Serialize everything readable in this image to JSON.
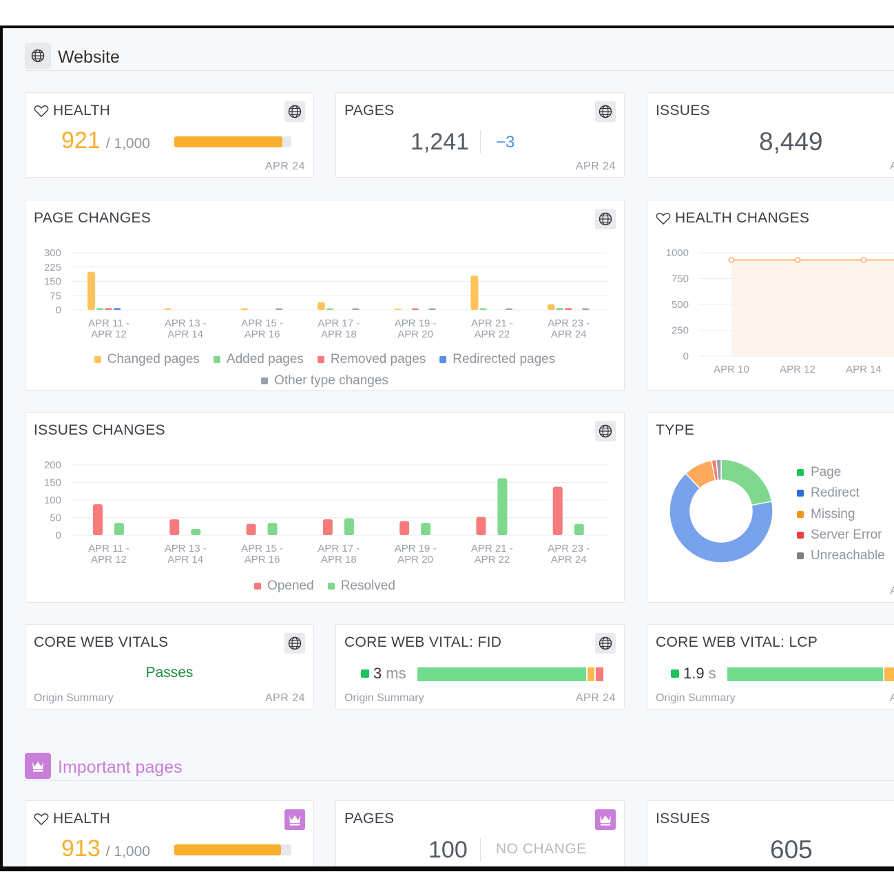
{
  "section_website": {
    "title": "Website"
  },
  "health": {
    "title": "HEALTH",
    "value": "921",
    "max": "/ 1,000",
    "fraction": 0.921,
    "date": "APR 24"
  },
  "pages": {
    "title": "PAGES",
    "value": "1,241",
    "change": "−3",
    "date": "APR 24"
  },
  "issues": {
    "title": "ISSUES",
    "value": "8,449",
    "date_partial": "A"
  },
  "page_changes": {
    "title": "PAGE CHANGES"
  },
  "health_changes": {
    "title": "HEALTH CHANGES"
  },
  "issues_changes": {
    "title": "ISSUES CHANGES"
  },
  "type": {
    "title": "TYPE",
    "date_partial": "A"
  },
  "cwv": {
    "title": "CORE WEB VITALS",
    "status": "Passes",
    "origin": "Origin Summary",
    "date": "APR 24"
  },
  "fid": {
    "title": "CORE WEB VITAL: FID",
    "value": "3",
    "unit": "ms",
    "origin": "Origin Summary",
    "date": "APR 24",
    "segments": [
      0.92,
      0.04,
      0.04
    ]
  },
  "lcp": {
    "title": "CORE WEB VITAL: LCP",
    "value": "1.9",
    "unit": "s",
    "origin": "Origin Summary",
    "date_partial": "A"
  },
  "section_important": {
    "title": "Important pages"
  },
  "imp_health": {
    "title": "HEALTH",
    "value": "913",
    "max": "/ 1,000",
    "fraction": 0.913
  },
  "imp_pages": {
    "title": "PAGES",
    "value": "100",
    "change": "NO CHANGE"
  },
  "imp_issues": {
    "title": "ISSUES",
    "value": "605"
  },
  "colors": {
    "orange": "#f9ae2e",
    "green": "#58cb6f",
    "red": "#f45b5b",
    "blue": "#3c7be0",
    "gray": "#8e949b",
    "accent_blue": "#4a90d9",
    "purple": "#c97fd9",
    "passes_green": "#1c8f3e"
  },
  "chart_data": [
    {
      "type": "bar",
      "title": "PAGE CHANGES",
      "categories": [
        "APR 11 - APR 12",
        "APR 13 - APR 14",
        "APR 15 - APR 16",
        "APR 17 - APR 18",
        "APR 19 - APR 20",
        "APR 21 - APR 22",
        "APR 23 - APR 24"
      ],
      "category_lines": [
        [
          "APR 11 -",
          "APR 12"
        ],
        [
          "APR 13 -",
          "APR 14"
        ],
        [
          "APR 15 -",
          "APR 16"
        ],
        [
          "APR 17 -",
          "APR 18"
        ],
        [
          "APR 19 -",
          "APR 20"
        ],
        [
          "APR 21 -",
          "APR 22"
        ],
        [
          "APR 23 -",
          "APR 24"
        ]
      ],
      "y_ticks": [
        "300",
        "225",
        "150",
        "75",
        "0"
      ],
      "ylim": [
        0,
        300
      ],
      "series": [
        {
          "name": "Changed pages",
          "color": "#ffc35c",
          "values": [
            200,
            8,
            8,
            40,
            6,
            180,
            30
          ]
        },
        {
          "name": "Added pages",
          "color": "#7fd88e",
          "values": [
            10,
            0,
            0,
            8,
            0,
            8,
            10
          ]
        },
        {
          "name": "Removed pages",
          "color": "#f77b7b",
          "values": [
            10,
            0,
            0,
            0,
            8,
            0,
            10
          ]
        },
        {
          "name": "Redirected pages",
          "color": "#5b8fe6",
          "values": [
            10,
            0,
            0,
            0,
            0,
            0,
            0
          ]
        },
        {
          "name": "Other type changes",
          "color": "#9aa0a8",
          "values": [
            0,
            0,
            8,
            8,
            8,
            8,
            8
          ]
        }
      ]
    },
    {
      "type": "area",
      "title": "HEALTH CHANGES",
      "x": [
        "APR 10",
        "APR 12",
        "APR 14"
      ],
      "y_ticks": [
        "1000",
        "750",
        "500",
        "250",
        "0"
      ],
      "ylim": [
        0,
        1000
      ],
      "values": [
        930,
        930,
        930
      ]
    },
    {
      "type": "bar",
      "title": "ISSUES CHANGES",
      "categories": [
        "APR 11 - APR 12",
        "APR 13 - APR 14",
        "APR 15 - APR 16",
        "APR 17 - APR 18",
        "APR 19 - APR 20",
        "APR 21 - APR 22",
        "APR 23 - APR 24"
      ],
      "category_lines": [
        [
          "APR 11 -",
          "APR 12"
        ],
        [
          "APR 13 -",
          "APR 14"
        ],
        [
          "APR 15 -",
          "APR 16"
        ],
        [
          "APR 17 -",
          "APR 18"
        ],
        [
          "APR 19 -",
          "APR 20"
        ],
        [
          "APR 21 -",
          "APR 22"
        ],
        [
          "APR 23 -",
          "APR 24"
        ]
      ],
      "y_ticks": [
        "200",
        "150",
        "100",
        "50",
        "0"
      ],
      "ylim": [
        0,
        200
      ],
      "series": [
        {
          "name": "Opened",
          "color": "#f77b7b",
          "values": [
            88,
            45,
            32,
            45,
            40,
            52,
            138
          ]
        },
        {
          "name": "Resolved",
          "color": "#7fd88e",
          "values": [
            35,
            18,
            35,
            48,
            35,
            162,
            32
          ]
        }
      ]
    },
    {
      "type": "pie",
      "title": "TYPE",
      "labels": [
        "Page",
        "Redirect",
        "Missing",
        "Server Error",
        "Unreachable"
      ],
      "colors": [
        "#7fd88e",
        "#78a2ec",
        "#ffa95c",
        "#f77b7b",
        "#9aa0a8"
      ],
      "values": [
        22,
        66,
        9,
        1.5,
        1.5
      ]
    }
  ]
}
